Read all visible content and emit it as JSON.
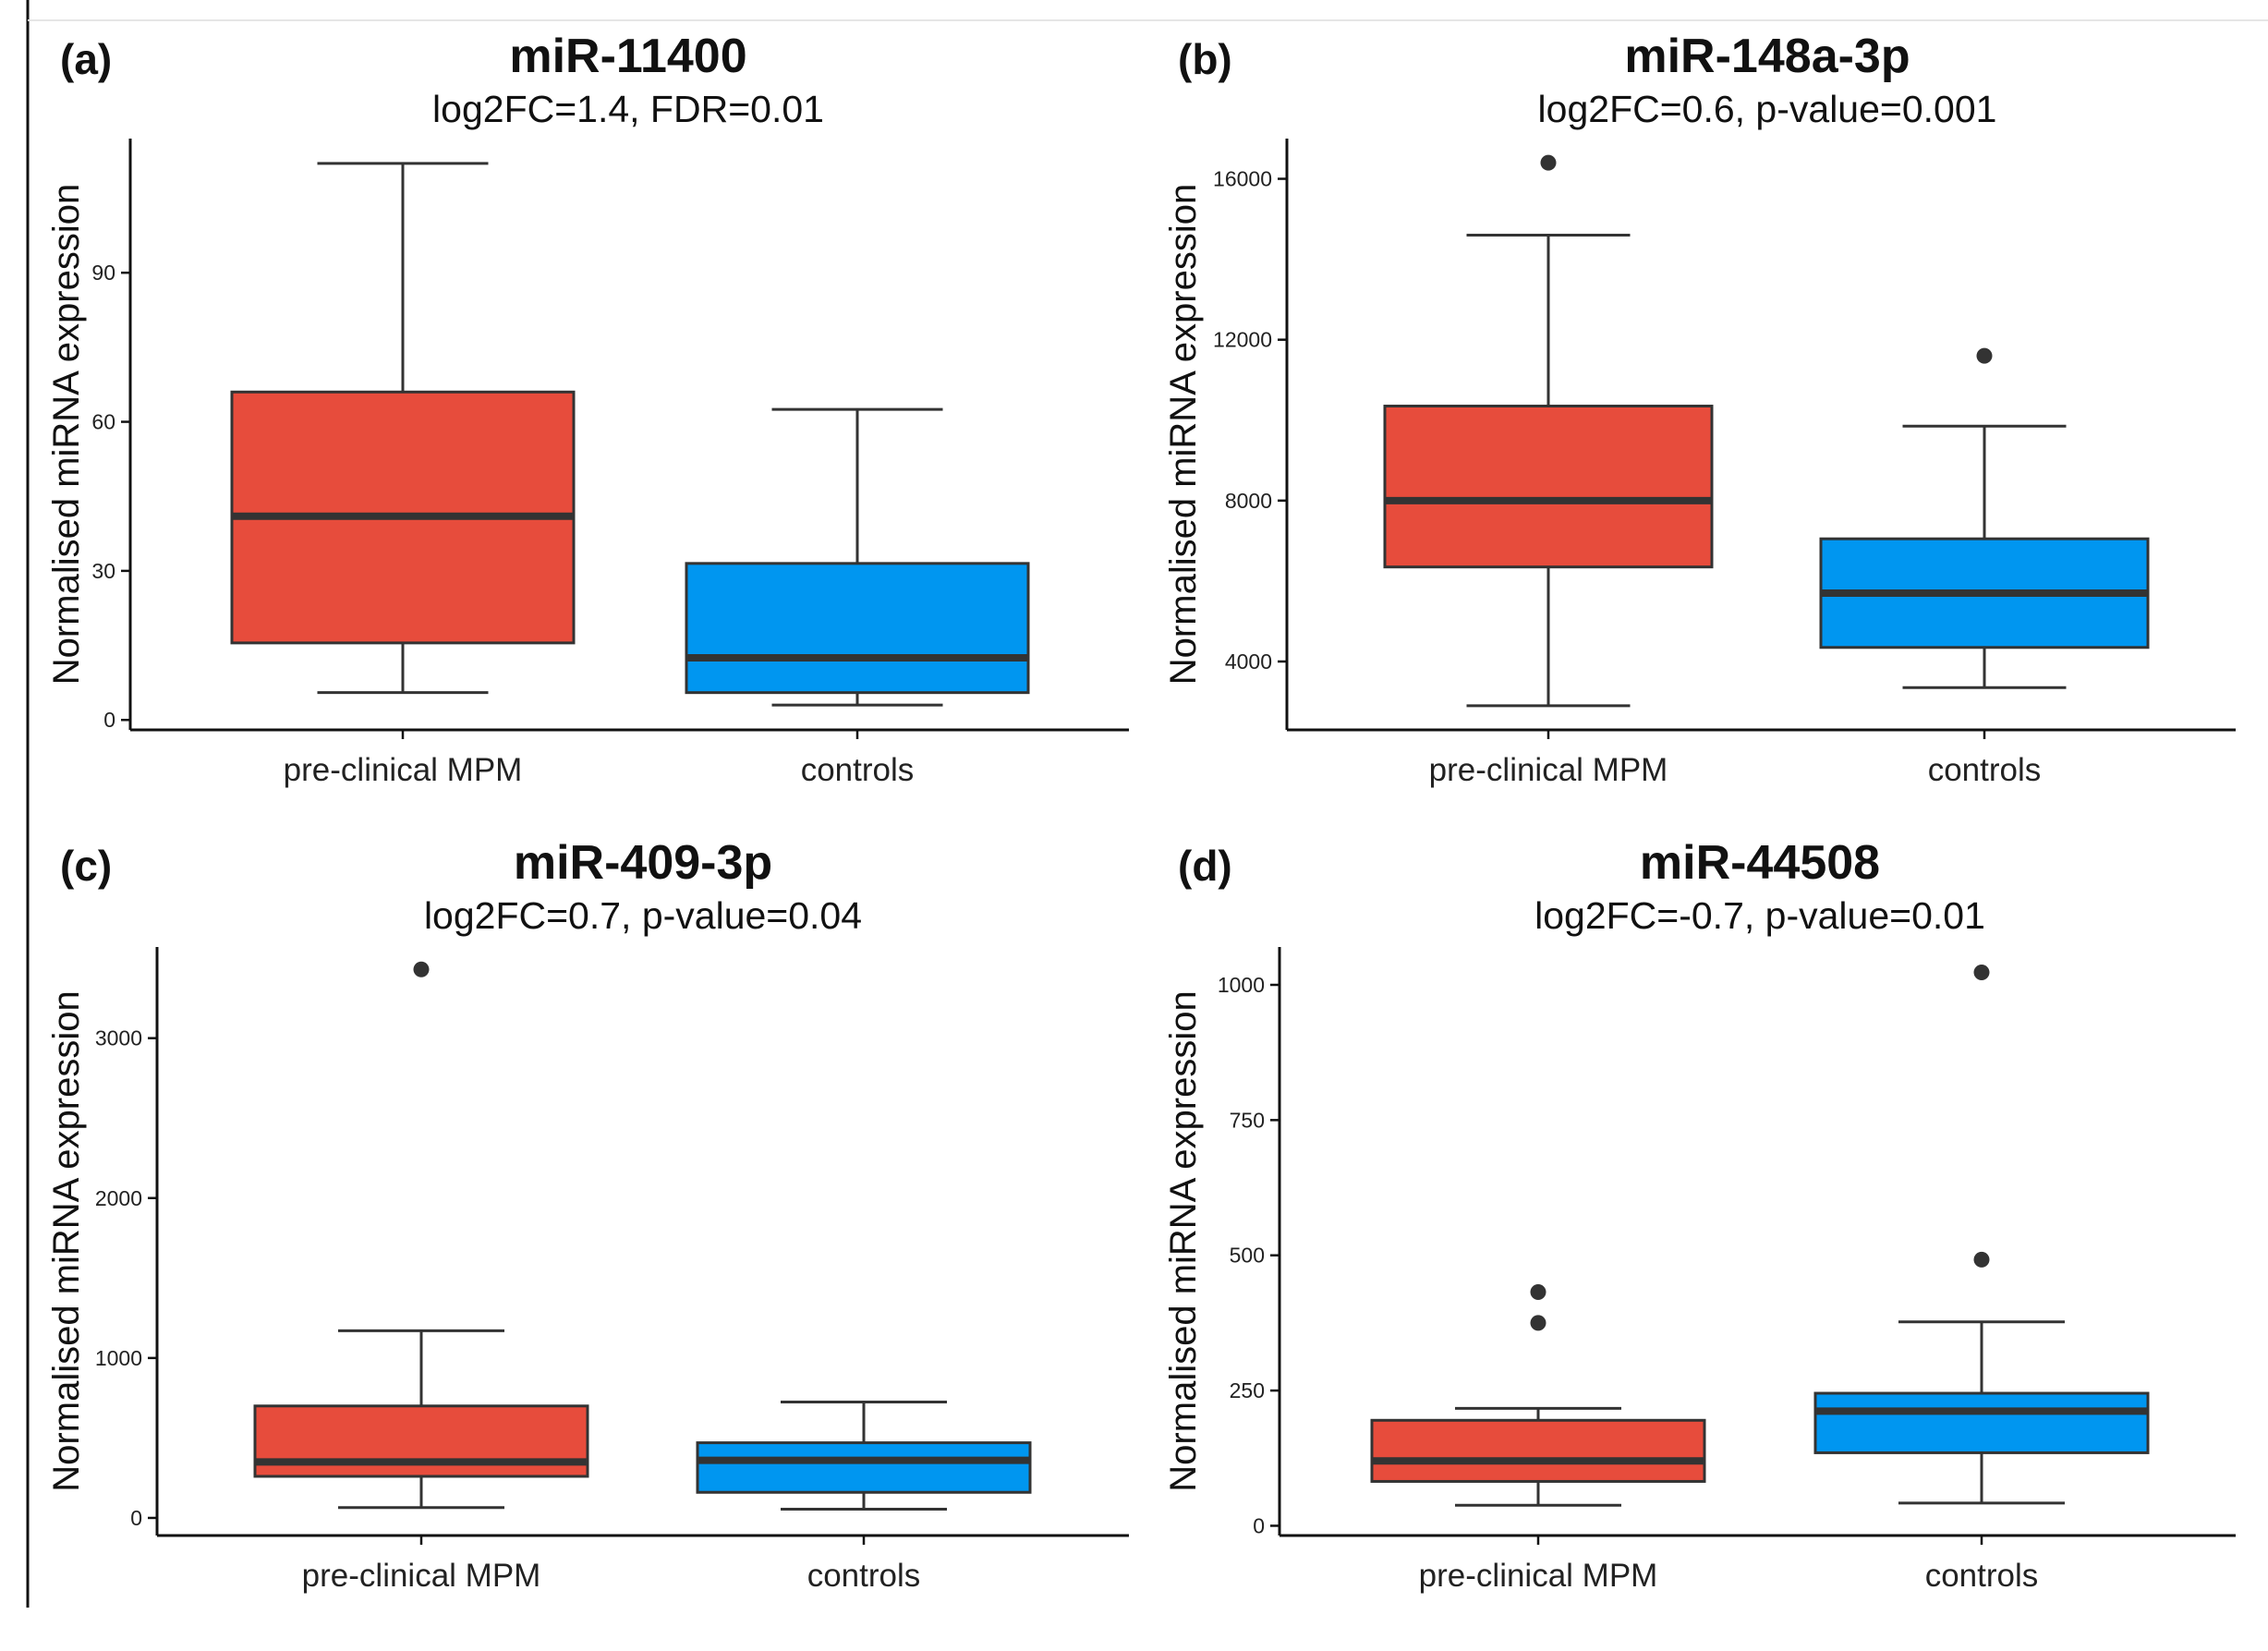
{
  "chart_data": [
    {
      "type": "box",
      "panel_label": "(a)",
      "title": "miR-11400",
      "subtitle": "log2FC=1.4, FDR=0.01",
      "xlabel": "",
      "ylabel": "Normalised miRNA expression",
      "categories": [
        "pre-clinical MPM",
        "controls"
      ],
      "yticks": [
        0,
        30,
        60,
        90
      ],
      "ylim": [
        -2,
        117
      ],
      "boxes": [
        {
          "category": "pre-clinical MPM",
          "min": 5.5,
          "q1": 15.5,
          "median": 41,
          "q3": 66,
          "max": 112,
          "outliers": [],
          "color": "#E74C3C"
        },
        {
          "category": "controls",
          "min": 3,
          "q1": 5.5,
          "median": 12.5,
          "q3": 31.5,
          "max": 62.5,
          "outliers": [],
          "color": "#0096F0"
        }
      ]
    },
    {
      "type": "box",
      "panel_label": "(b)",
      "title": "miR-148a-3p",
      "subtitle": "log2FC=0.6, p-value=0.001",
      "xlabel": "",
      "ylabel": "Normalised miRNA expression",
      "categories": [
        "pre-clinical MPM",
        "controls"
      ],
      "yticks": [
        4000,
        8000,
        12000,
        16000
      ],
      "ylim": [
        2300,
        17000
      ],
      "boxes": [
        {
          "category": "pre-clinical MPM",
          "min": 2900,
          "q1": 6350,
          "median": 8000,
          "q3": 10350,
          "max": 14600,
          "outliers": [
            16400
          ],
          "color": "#E74C3C"
        },
        {
          "category": "controls",
          "min": 3350,
          "q1": 4350,
          "median": 5700,
          "q3": 7050,
          "max": 9850,
          "outliers": [
            11600
          ],
          "color": "#0096F0"
        }
      ]
    },
    {
      "type": "box",
      "panel_label": "(c)",
      "title": "miR-409-3p",
      "subtitle": "log2FC=0.7, p-value=0.04",
      "xlabel": "",
      "ylabel": "Normalised miRNA expression",
      "categories": [
        "pre-clinical MPM",
        "controls"
      ],
      "yticks": [
        0,
        1000,
        2000,
        3000
      ],
      "ylim": [
        -110,
        3570
      ],
      "boxes": [
        {
          "category": "pre-clinical MPM",
          "min": 65,
          "q1": 260,
          "median": 350,
          "q3": 700,
          "max": 1170,
          "outliers": [
            3430
          ],
          "color": "#E74C3C"
        },
        {
          "category": "controls",
          "min": 55,
          "q1": 160,
          "median": 360,
          "q3": 470,
          "max": 725,
          "outliers": [],
          "color": "#0096F0"
        }
      ]
    },
    {
      "type": "box",
      "panel_label": "(d)",
      "title": "miR-44508",
      "subtitle": "log2FC=-0.7, p-value=0.01",
      "xlabel": "",
      "ylabel": "Normalised miRNA expression",
      "categories": [
        "pre-clinical MPM",
        "controls"
      ],
      "yticks": [
        0,
        250,
        500,
        750,
        1000
      ],
      "ylim": [
        -18,
        1070
      ],
      "boxes": [
        {
          "category": "pre-clinical MPM",
          "min": 38,
          "q1": 82,
          "median": 120,
          "q3": 195,
          "max": 217,
          "outliers": [
            432,
            375
          ],
          "color": "#E74C3C"
        },
        {
          "category": "controls",
          "min": 42,
          "q1": 135,
          "median": 212,
          "q3": 245,
          "max": 377,
          "outliers": [
            492,
            1023
          ],
          "color": "#0096F0"
        }
      ]
    }
  ]
}
